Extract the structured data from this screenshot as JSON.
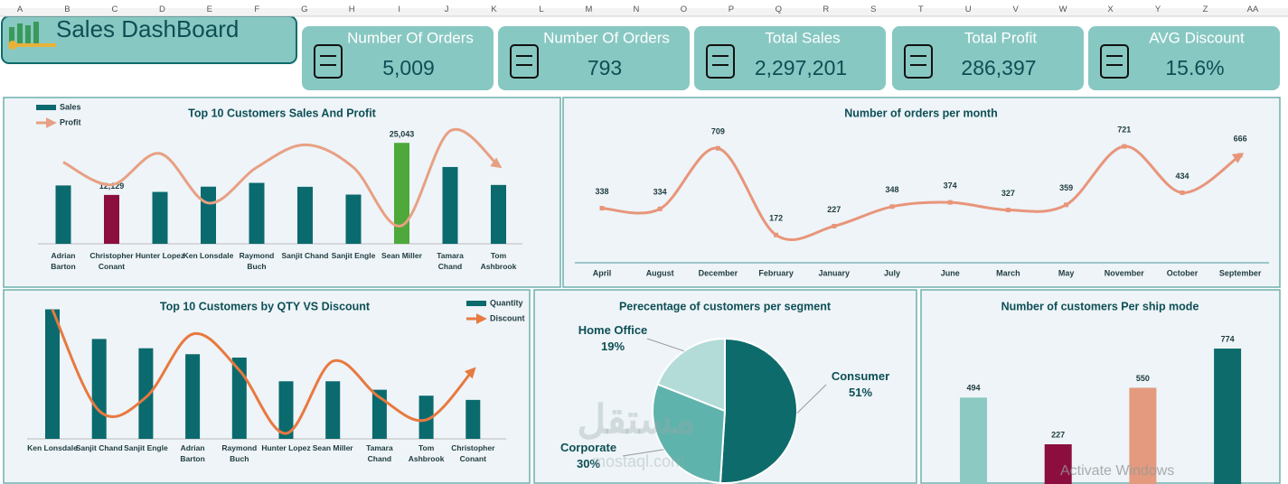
{
  "sheet_columns": [
    "A",
    "B",
    "C",
    "D",
    "E",
    "F",
    "G",
    "H",
    "I",
    "J",
    "K",
    "L",
    "M",
    "N",
    "O",
    "P",
    "Q",
    "R",
    "S",
    "T",
    "U",
    "V",
    "W",
    "X",
    "Y",
    "Z",
    "AA"
  ],
  "dashboard_title": "Sales DashBoard",
  "kpis": [
    {
      "label": "Number Of Orders",
      "value": "5,009"
    },
    {
      "label": "Number Of Orders",
      "value": "793"
    },
    {
      "label": "Total Sales",
      "value": "2,297,201"
    },
    {
      "label": "Total Profit",
      "value": "286,397"
    },
    {
      "label": "AVG Discount",
      "value": "15.6%"
    }
  ],
  "chart_data": [
    {
      "type": "combo",
      "title": "Top 10 Customers Sales And Profit",
      "categories": [
        "Adrian Barton",
        "Christopher Conant",
        "Hunter Lopez",
        "Ken Lonsdale",
        "Raymond Buch",
        "Sanjit Chand",
        "Sanjit Engle",
        "Sean Miller",
        "Tamara Chand",
        "Tom Ashbrook"
      ],
      "series": [
        {
          "name": "Sales",
          "kind": "bar",
          "color": "#0b6a6e",
          "colors": [
            "#0b6a6e",
            "#8b0e3e",
            "#0b6a6e",
            "#0b6a6e",
            "#0b6a6e",
            "#0b6a6e",
            "#0b6a6e",
            "#4ea83a",
            "#0b6a6e",
            "#0b6a6e"
          ],
          "values": [
            14474,
            12129,
            12873,
            14175,
            15117,
            14142,
            12209,
            25043,
            19052,
            14596
          ],
          "value_labels": [
            null,
            "12,129",
            null,
            null,
            null,
            null,
            null,
            "25,043",
            null,
            null
          ]
        },
        {
          "name": "Profit",
          "kind": "line",
          "axis": "y2",
          "color": "#e8a083",
          "values": [
            6400,
            3800,
            7400,
            1700,
            5800,
            8400,
            5800,
            -900,
            10000,
            6000
          ]
        }
      ],
      "ylim": [
        0,
        28000
      ],
      "y2lim": [
        -3000,
        10000
      ],
      "legend": "top-left"
    },
    {
      "type": "line",
      "title": "Number of orders per month",
      "categories": [
        "April",
        "August",
        "December",
        "February",
        "January",
        "July",
        "June",
        "March",
        "May",
        "November",
        "October",
        "September"
      ],
      "series": [
        {
          "name": "Orders",
          "color": "#e8957a",
          "values": [
            338,
            334,
            709,
            172,
            227,
            348,
            374,
            327,
            359,
            721,
            434,
            666
          ]
        }
      ],
      "ylim": [
        0,
        800
      ]
    },
    {
      "type": "combo",
      "title": "Top 10 Customers by QTY VS Discount",
      "categories": [
        "Ken Lonsdale",
        "Sanjit Chand",
        "Sanjit Engle",
        "Adrian Barton",
        "Raymond Buch",
        "Hunter Lopez",
        "Sean Miller",
        "Tamara Chand",
        "Tom Ashbrook",
        "Christopher Conant"
      ],
      "series": [
        {
          "name": "Quantity",
          "kind": "bar",
          "color": "#0b6a6e",
          "values": [
            153,
            118,
            107,
            100,
            96,
            68,
            68,
            58,
            51,
            46
          ]
        },
        {
          "name": "Discount",
          "kind": "line",
          "axis": "y2",
          "color": "#e8793f",
          "values": [
            2.86,
            0.62,
            0.92,
            2.32,
            1.52,
            0.12,
            1.72,
            0.92,
            0.42,
            1.52
          ]
        }
      ],
      "ylim": [
        0,
        160
      ],
      "y2lim": [
        0,
        3
      ],
      "legend": "top-right"
    },
    {
      "type": "pie",
      "title": "Perecentage of customers per segment",
      "categories": [
        "Consumer",
        "Corporate",
        "Home Office"
      ],
      "values": [
        51,
        30,
        19
      ],
      "value_labels": [
        "51%",
        "30%",
        "19%"
      ],
      "colors": [
        "#0e6b6b",
        "#5fb3ad",
        "#b3dcd9"
      ]
    },
    {
      "type": "bar",
      "title": "Number of customers  Per ship mode",
      "values": [
        494,
        227,
        550,
        774
      ],
      "colors": [
        "#8cc9c2",
        "#8b0e3e",
        "#e39a7e",
        "#0e6b6b"
      ],
      "ylim": [
        0,
        800
      ]
    }
  ],
  "overlays": {
    "watermark": "مستقل",
    "watermark_site": "mostaql.com",
    "system_notice": "Activate Windows"
  }
}
